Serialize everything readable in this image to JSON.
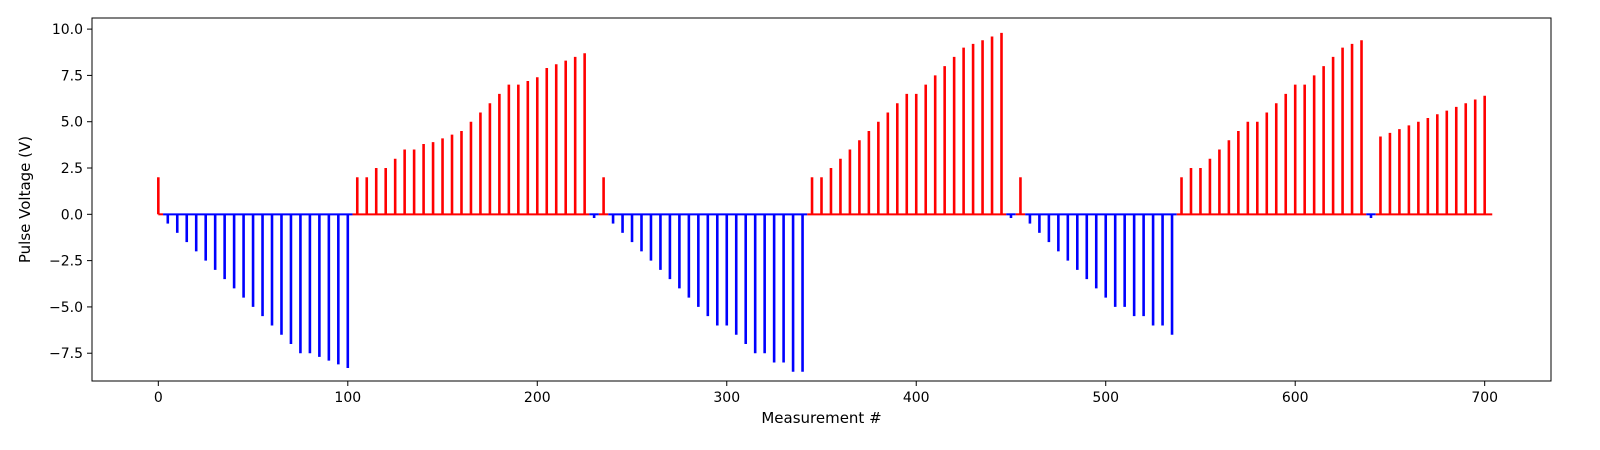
{
  "chart_data": {
    "type": "stem",
    "xlabel": "Measurement #",
    "ylabel": "Pulse Voltage (V)",
    "xlim": [
      -35,
      735
    ],
    "ylim": [
      -9.0,
      10.6
    ],
    "xticks": [
      0,
      100,
      200,
      300,
      400,
      500,
      600,
      700
    ],
    "yticks": [
      -7.5,
      -5.0,
      -2.5,
      0.0,
      2.5,
      5.0,
      7.5,
      10.0
    ],
    "xtick_labels": [
      "0",
      "100",
      "200",
      "300",
      "400",
      "500",
      "600",
      "700"
    ],
    "ytick_labels": [
      "−7.5",
      "−5.0",
      "−2.5",
      "0.0",
      "2.5",
      "5.0",
      "7.5",
      "10.0"
    ],
    "grid": false,
    "baseline": {
      "from": 0,
      "to": 704
    },
    "colors": {
      "positive": "#ff0000",
      "negative": "#0000ff"
    },
    "x": [
      0,
      5,
      10,
      15,
      20,
      25,
      30,
      35,
      40,
      45,
      50,
      55,
      60,
      65,
      70,
      75,
      80,
      85,
      90,
      95,
      100,
      105,
      110,
      115,
      120,
      125,
      130,
      135,
      140,
      145,
      150,
      155,
      160,
      165,
      170,
      175,
      180,
      185,
      190,
      195,
      200,
      205,
      210,
      215,
      220,
      225,
      230,
      235,
      240,
      245,
      250,
      255,
      260,
      265,
      270,
      275,
      280,
      285,
      290,
      295,
      300,
      305,
      310,
      315,
      320,
      325,
      330,
      335,
      340,
      345,
      350,
      355,
      360,
      365,
      370,
      375,
      380,
      385,
      390,
      395,
      400,
      405,
      410,
      415,
      420,
      425,
      430,
      435,
      440,
      445,
      450,
      455,
      460,
      465,
      470,
      475,
      480,
      485,
      490,
      495,
      500,
      505,
      510,
      515,
      520,
      525,
      530,
      535,
      540,
      545,
      550,
      555,
      560,
      565,
      570,
      575,
      580,
      585,
      590,
      595,
      600,
      605,
      610,
      615,
      620,
      625,
      630,
      635,
      640,
      645,
      650,
      655,
      660,
      665,
      670,
      675,
      680,
      685,
      690,
      695,
      700
    ],
    "y": [
      2.0,
      -0.5,
      -1.0,
      -1.5,
      -2.0,
      -2.5,
      -3.0,
      -3.5,
      -4.0,
      -4.5,
      -5.0,
      -5.5,
      -6.0,
      -6.5,
      -7.0,
      -7.5,
      -7.5,
      -7.7,
      -7.9,
      -8.1,
      -8.3,
      2.0,
      2.0,
      2.5,
      2.5,
      3.0,
      3.5,
      3.5,
      3.8,
      3.9,
      4.1,
      4.3,
      4.5,
      5.0,
      5.5,
      6.0,
      6.5,
      7.0,
      7.0,
      7.2,
      7.4,
      7.9,
      8.1,
      8.3,
      8.5,
      8.7,
      -0.2,
      2.0,
      -0.5,
      -1.0,
      -1.5,
      -2.0,
      -2.5,
      -3.0,
      -3.5,
      -4.0,
      -4.5,
      -5.0,
      -5.5,
      -6.0,
      -6.0,
      -6.5,
      -7.0,
      -7.5,
      -7.5,
      -8.0,
      -8.0,
      -8.5,
      -8.5,
      2.0,
      2.0,
      2.5,
      3.0,
      3.5,
      4.0,
      4.5,
      5.0,
      5.5,
      6.0,
      6.5,
      6.5,
      7.0,
      7.5,
      8.0,
      8.5,
      9.0,
      9.2,
      9.4,
      9.6,
      9.8,
      -0.2,
      2.0,
      -0.5,
      -1.0,
      -1.5,
      -2.0,
      -2.5,
      -3.0,
      -3.5,
      -4.0,
      -4.5,
      -5.0,
      -5.0,
      -5.5,
      -5.5,
      -6.0,
      -6.0,
      -6.5,
      2.0,
      2.5,
      2.5,
      3.0,
      3.5,
      4.0,
      4.5,
      5.0,
      5.0,
      5.5,
      6.0,
      6.5,
      7.0,
      7.0,
      7.5,
      8.0,
      8.5,
      9.0,
      9.2,
      9.4,
      -0.2,
      4.2,
      4.4,
      4.6,
      4.8,
      5.0,
      5.2,
      5.4,
      5.6,
      5.8,
      6.0,
      6.2,
      6.4
    ]
  }
}
